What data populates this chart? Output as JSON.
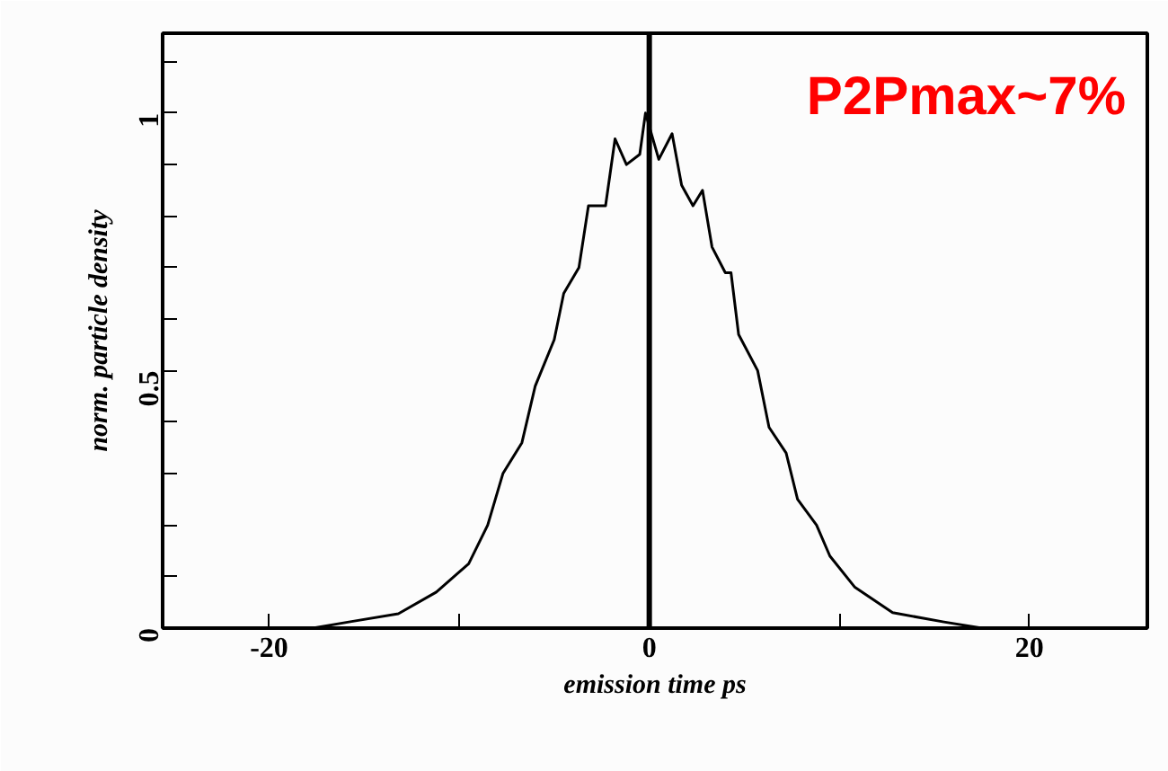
{
  "chart_data": {
    "type": "line",
    "xlabel": "emission time ps",
    "ylabel": "norm. particle density",
    "x": [
      -17.7,
      -15.8,
      -13.2,
      -11.2,
      -9.5,
      -8.5,
      -7.7,
      -6.7,
      -6.0,
      -5.0,
      -4.5,
      -3.7,
      -3.2,
      -2.3,
      -1.8,
      -1.2,
      -0.5,
      -0.2,
      0.5,
      1.2,
      1.7,
      2.3,
      2.8,
      3.3,
      4.0,
      4.3,
      4.7,
      5.7,
      6.3,
      7.2,
      7.8,
      8.8,
      9.5,
      10.8,
      12.8,
      15.5,
      17.5
    ],
    "values": [
      0.0,
      0.012,
      0.028,
      0.07,
      0.125,
      0.2,
      0.3,
      0.36,
      0.47,
      0.56,
      0.65,
      0.7,
      0.82,
      0.82,
      0.95,
      0.9,
      0.92,
      1.0,
      0.91,
      0.96,
      0.86,
      0.82,
      0.85,
      0.74,
      0.69,
      0.69,
      0.57,
      0.5,
      0.39,
      0.34,
      0.25,
      0.2,
      0.14,
      0.08,
      0.03,
      0.012,
      0.0
    ],
    "color": "#000000",
    "xlim": [
      -25.6,
      26.2
    ],
    "ylim": [
      0,
      1.155
    ],
    "xticks": [
      -20,
      {
        "value": -10,
        "label": null
      },
      0,
      {
        "value": 10,
        "label": null
      },
      20
    ],
    "yticks": [
      0,
      {
        "value": 0.1,
        "label": null
      },
      {
        "value": 0.2,
        "label": null
      },
      {
        "value": 0.3,
        "label": null
      },
      {
        "value": 0.4,
        "label": null
      },
      0.5,
      {
        "value": 0.6,
        "label": null
      },
      {
        "value": 0.7,
        "label": null
      },
      {
        "value": 0.8,
        "label": null
      },
      {
        "value": 0.9,
        "label": null
      },
      1,
      {
        "value": 1.1,
        "label": null
      }
    ],
    "ref_lines": [
      {
        "axis": "x",
        "value": 0,
        "label": null,
        "color": "#000000"
      }
    ],
    "annotations": [
      "P2Pmax~7%"
    ],
    "grid": false,
    "marker": "none",
    "line_style": "solid"
  }
}
